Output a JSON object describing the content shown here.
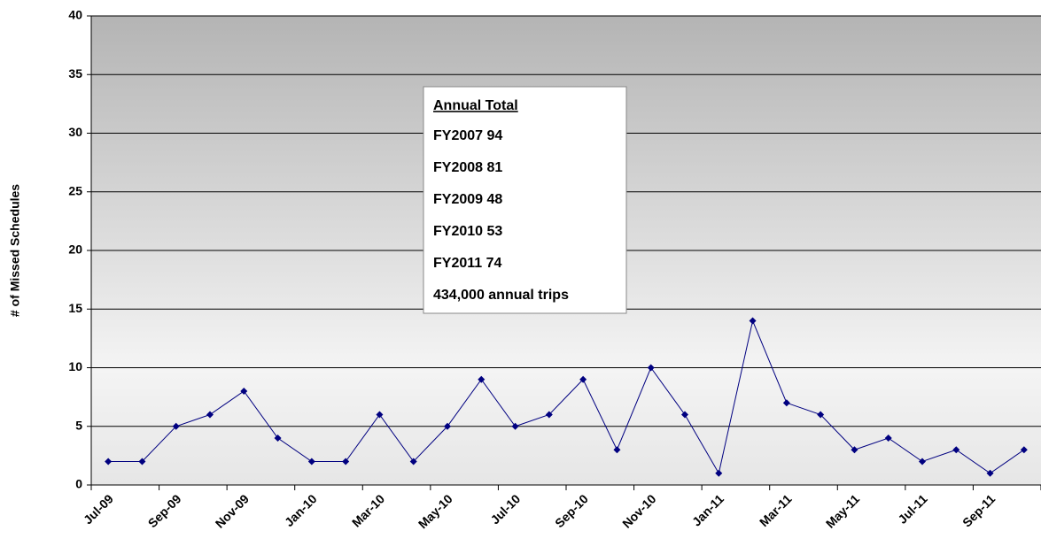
{
  "chart_data": {
    "type": "line",
    "y_label": "# of Missed Schedules",
    "categories": [
      "Jul-09",
      null,
      "Sep-09",
      null,
      "Nov-09",
      null,
      "Jan-10",
      null,
      "Mar-10",
      null,
      "May-10",
      null,
      "Jul-10",
      null,
      "Sep-10",
      null,
      "Nov-10",
      null,
      "Jan-11",
      null,
      "Mar-11",
      null,
      "May-11",
      null,
      "Jul-11",
      null,
      "Sep-11",
      null
    ],
    "series": [
      {
        "name": "Missed Schedules",
        "color": "#000080",
        "values": [
          2,
          2,
          5,
          6,
          8,
          4,
          2,
          2,
          6,
          2,
          5,
          9,
          5,
          6,
          9,
          3,
          10,
          6,
          1,
          14,
          7,
          6,
          3,
          4,
          2,
          3,
          1,
          3
        ]
      }
    ],
    "ylim": [
      0,
      40
    ],
    "yticks": [
      0,
      5,
      10,
      15,
      20,
      25,
      30,
      35,
      40
    ],
    "grid": true,
    "annotation": {
      "title": "Annual Total",
      "lines": [
        "FY2007 94",
        "FY2008 81",
        "FY2009 48",
        "FY2010 53",
        "FY2011 74"
      ],
      "note": "434,000 annual trips",
      "note_color": "#ff0000"
    }
  }
}
